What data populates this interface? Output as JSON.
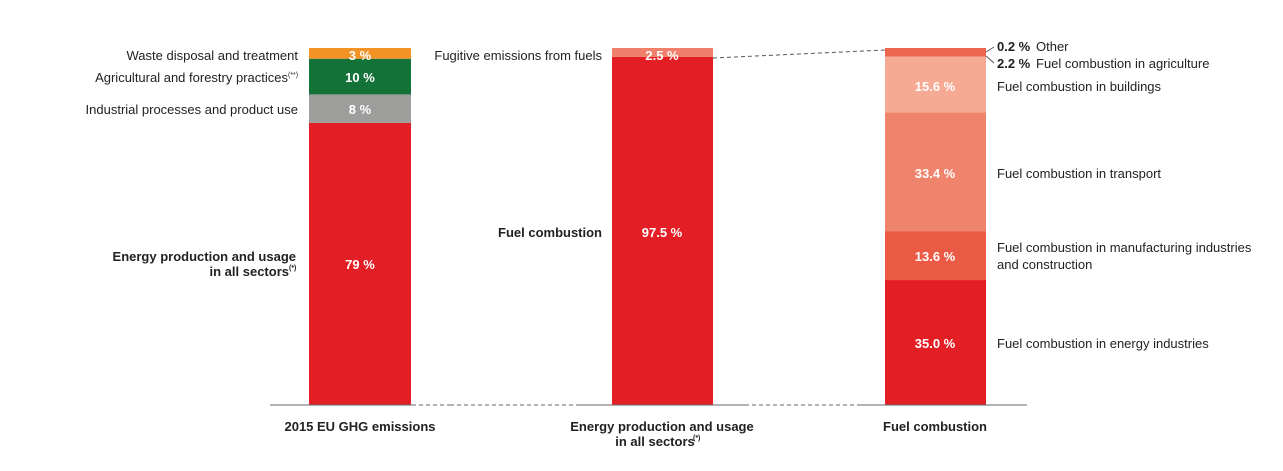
{
  "colors": {
    "energy": "#e31e24",
    "industrial": "#9d9d9c",
    "agri": "#137238",
    "waste": "#f39325",
    "fugitive": "#ef7f6a",
    "comb_energy": "#e31e24",
    "comb_manuf": "#eb5a44",
    "comb_transport": "#ef836b",
    "comb_buildings": "#f6a993",
    "comb_agriculture": "#ed6650",
    "comb_other": "#e94636"
  },
  "chart_data": [
    {
      "type": "bar",
      "stacked": true,
      "category": "2015 EU GHG emissions",
      "unit": "%",
      "segments": [
        {
          "name": "Energy production and usage in all sectors",
          "name_line1": "Energy production and usage",
          "name_line2": "in all sectors",
          "footnote": "(*)",
          "value": 79,
          "value_label": "79 %",
          "color_key": "energy"
        },
        {
          "name": "Industrial processes and product use",
          "footnote": "",
          "value": 8,
          "value_label": "8 %",
          "color_key": "industrial"
        },
        {
          "name": "Agricultural and forestry practices",
          "footnote": "(**)",
          "value": 10,
          "value_label": "10 %",
          "color_key": "agri"
        },
        {
          "name": "Waste disposal and treatment",
          "footnote": "",
          "value": 3,
          "value_label": "3 %",
          "color_key": "waste"
        }
      ]
    },
    {
      "type": "bar",
      "stacked": true,
      "category_line1": "Energy production and usage",
      "category_line2": "in all sectors",
      "category_footnote": "(*)",
      "unit": "%",
      "segments": [
        {
          "name": "Fuel combustion",
          "value": 97.5,
          "value_label": "97.5 %",
          "color_key": "energy"
        },
        {
          "name": "Fugitive emissions from fuels",
          "value": 2.5,
          "value_label": "2.5 %",
          "color_key": "fugitive"
        }
      ]
    },
    {
      "type": "bar",
      "stacked": true,
      "category": "Fuel combustion",
      "unit": "%",
      "segments": [
        {
          "name": "Fuel combustion in energy industries",
          "value": 35.0,
          "value_label": "35.0 %",
          "color_key": "comb_energy"
        },
        {
          "name_line1": "Fuel combustion in manufacturing industries",
          "name_line2": "and construction",
          "value": 13.6,
          "value_label": "13.6 %",
          "color_key": "comb_manuf"
        },
        {
          "name": "Fuel combustion in transport",
          "value": 33.4,
          "value_label": "33.4 %",
          "color_key": "comb_transport"
        },
        {
          "name": "Fuel combustion in buildings",
          "value": 15.6,
          "value_label": "15.6 %",
          "color_key": "comb_buildings"
        },
        {
          "name": "Fuel combustion in agriculture",
          "value": 2.2,
          "value_label": "2.2 %",
          "color_key": "comb_agriculture"
        },
        {
          "name": "Other",
          "value": 0.2,
          "value_label": "0.2 %",
          "color_key": "comb_other"
        }
      ]
    }
  ]
}
